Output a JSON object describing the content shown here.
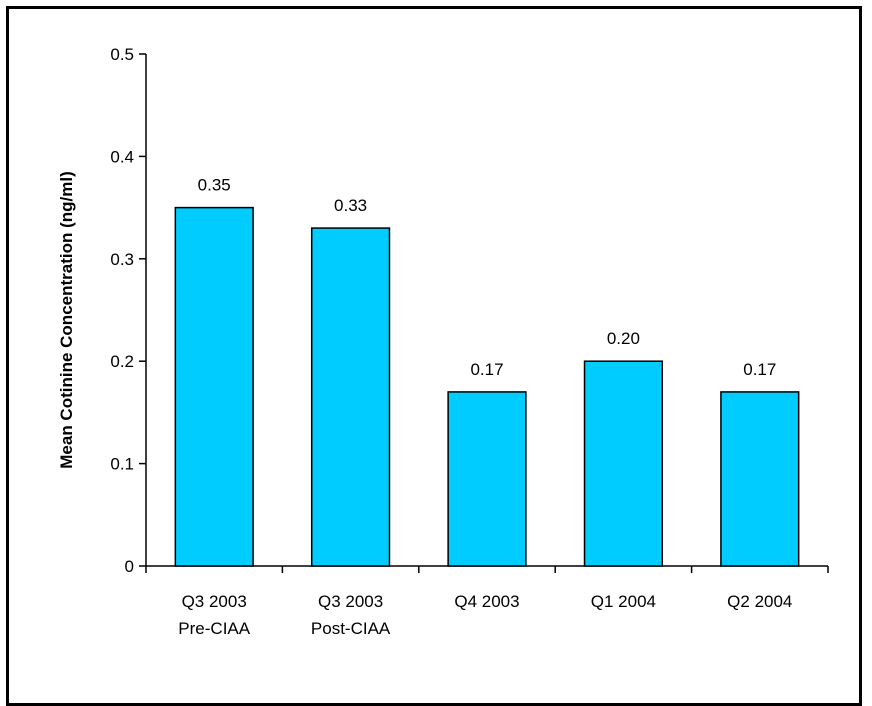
{
  "chart_data": {
    "type": "bar",
    "categories": [
      [
        "Q3 2003",
        "Pre-CIAA"
      ],
      [
        "Q3 2003",
        "Post-CIAA"
      ],
      [
        "Q4 2003"
      ],
      [
        "Q1 2004"
      ],
      [
        "Q2 2004"
      ]
    ],
    "values": [
      0.35,
      0.33,
      0.17,
      0.2,
      0.17
    ],
    "data_labels": [
      "0.35",
      "0.33",
      "0.17",
      "0.20",
      "0.17"
    ],
    "ylabel": "Mean Cotinine Concentration (ng/ml)",
    "xlabel": "",
    "ylim": [
      0,
      0.5
    ],
    "yticks": [
      0,
      0.1,
      0.2,
      0.3,
      0.4,
      0.5
    ],
    "ytick_labels": [
      "0",
      "0.1",
      "0.2",
      "0.3",
      "0.4",
      "0.5"
    ],
    "bar_color": "#00CCFF",
    "bar_edge_color": "#000000",
    "grid": false,
    "legend": "none"
  }
}
